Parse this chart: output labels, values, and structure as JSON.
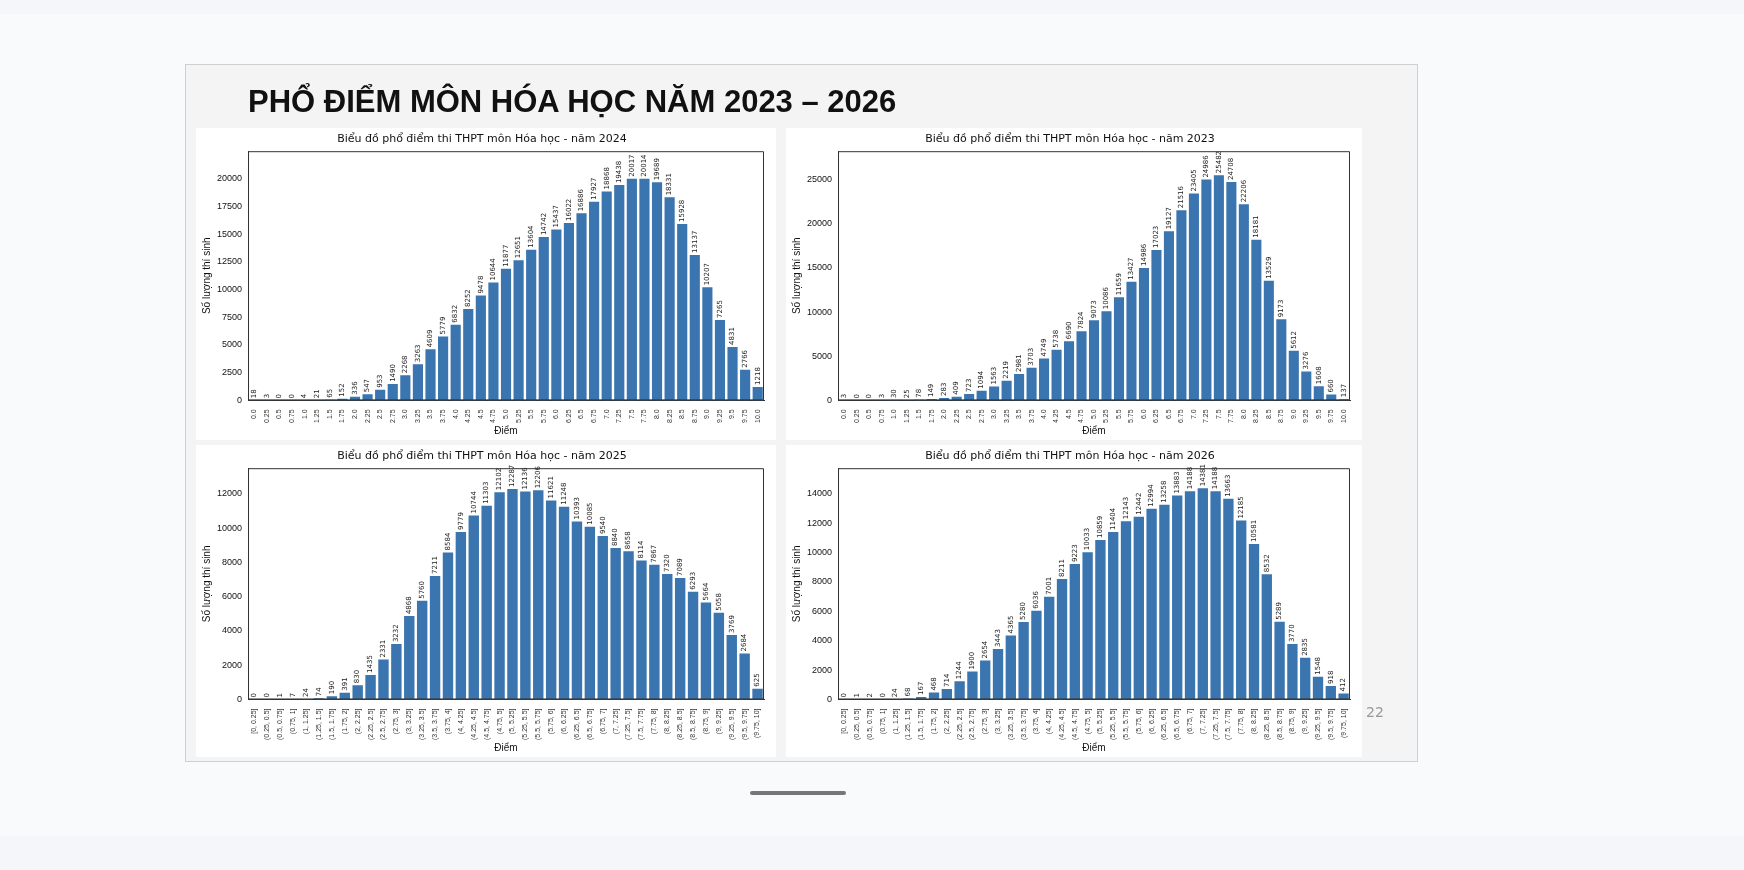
{
  "chart_data": [
    {
      "type": "bar",
      "title": "Biểu đồ phổ điểm thi THPT môn Hóa học - năm 2024",
      "xlabel": "Điểm",
      "ylabel": "Số lượng thí sinh",
      "annotations": [
        "PHỔ ĐIỂM MÔN HÓA HỌC NĂM 2023 – 2026",
        "22"
      ],
      "categories": [
        "0.0",
        "0.25",
        "0.5",
        "0.75",
        "1.0",
        "1.25",
        "1.5",
        "1.75",
        "2.0",
        "2.25",
        "2.5",
        "2.75",
        "3.0",
        "3.25",
        "3.5",
        "3.75",
        "4.0",
        "4.25",
        "4.5",
        "4.75",
        "5.0",
        "5.25",
        "5.5",
        "5.75",
        "6.0",
        "6.25",
        "6.5",
        "6.75",
        "7.0",
        "7.25",
        "7.5",
        "7.75",
        "8.0",
        "8.25",
        "8.5",
        "8.75",
        "9.0",
        "9.25",
        "9.5",
        "9.75",
        "10.0"
      ],
      "values": [
        18,
        3,
        0,
        0,
        4,
        21,
        65,
        152,
        336,
        547,
        953,
        1490,
        2268,
        3263,
        4609,
        5779,
        6832,
        8252,
        9478,
        10644,
        11877,
        12651,
        13604,
        14742,
        15437,
        16022,
        16886,
        17927,
        18868,
        19438,
        20017,
        20014,
        19689,
        18331,
        15928,
        13137,
        10207,
        7265,
        4831,
        2766,
        1218
      ],
      "color": "#3b75af",
      "ylim": [
        0,
        22500
      ],
      "yticks": [
        0,
        2500,
        5000,
        7500,
        10000,
        12500,
        15000,
        17500,
        20000
      ],
      "data_labels": true,
      "grid": false,
      "legend": false
    },
    {
      "type": "bar",
      "title": "Biểu đồ phổ điểm thi THPT môn Hóa học - năm 2023",
      "xlabel": "Điểm",
      "ylabel": "Số lượng thí sinh",
      "categories": [
        "0.0",
        "0.25",
        "0.5",
        "0.75",
        "1.0",
        "1.25",
        "1.5",
        "1.75",
        "2.0",
        "2.25",
        "2.5",
        "2.75",
        "3.0",
        "3.25",
        "3.5",
        "3.75",
        "4.0",
        "4.25",
        "4.5",
        "4.75",
        "5.0",
        "5.25",
        "5.5",
        "5.75",
        "6.0",
        "6.25",
        "6.5",
        "6.75",
        "7.0",
        "7.25",
        "7.5",
        "7.75",
        "8.0",
        "8.25",
        "8.5",
        "8.75",
        "9.0",
        "9.25",
        "9.5",
        "9.75",
        "10.0"
      ],
      "values": [
        3,
        0,
        0,
        3,
        30,
        25,
        78,
        149,
        283,
        409,
        723,
        1094,
        1563,
        2219,
        2981,
        3703,
        4749,
        5738,
        6690,
        7824,
        9073,
        10086,
        11659,
        13427,
        14986,
        17023,
        19127,
        21516,
        23405,
        24986,
        25482,
        24708,
        22206,
        18181,
        13529,
        9173,
        5612,
        3276,
        1608,
        660,
        137
      ],
      "color": "#3b75af",
      "ylim": [
        0,
        28200
      ],
      "yticks": [
        0,
        5000,
        10000,
        15000,
        20000,
        25000
      ],
      "data_labels": true,
      "grid": false,
      "legend": false
    },
    {
      "type": "bar",
      "title": "Biểu đồ phổ điểm thi THPT môn Hóa học - năm 2025",
      "xlabel": "Điểm",
      "ylabel": "Số lượng thí sinh",
      "categories": [
        "[0, 0.25]",
        "(0.25, 0.5]",
        "(0.5, 0.75]",
        "(0.75, 1]",
        "(1, 1.25]",
        "(1.25, 1.5]",
        "(1.5, 1.75]",
        "(1.75, 2]",
        "(2, 2.25]",
        "(2.25, 2.5]",
        "(2.5, 2.75]",
        "(2.75, 3]",
        "(3, 3.25]",
        "(3.25, 3.5]",
        "(3.5, 3.75]",
        "(3.75, 4]",
        "(4, 4.25]",
        "(4.25, 4.5]",
        "(4.5, 4.75]",
        "(4.75, 5]",
        "(5, 5.25]",
        "(5.25, 5.5]",
        "(5.5, 5.75]",
        "(5.75, 6]",
        "(6, 6.25]",
        "(6.25, 6.5]",
        "(6.5, 6.75]",
        "(6.75, 7]",
        "(7, 7.25]",
        "(7.25, 7.5]",
        "(7.5, 7.75]",
        "(7.75, 8]",
        "(8, 8.25]",
        "(8.25, 8.5]",
        "(8.5, 8.75]",
        "(8.75, 9]",
        "(9, 9.25]",
        "(9.25, 9.5]",
        "(9.5, 9.75]",
        "(9.75, 10]"
      ],
      "values": [
        0,
        0,
        1,
        7,
        24,
        74,
        190,
        391,
        830,
        1435,
        2331,
        3232,
        4868,
        5760,
        7211,
        8584,
        9779,
        10744,
        11303,
        12102,
        12287,
        12136,
        12206,
        11621,
        11248,
        10393,
        10085,
        9540,
        8840,
        8658,
        8114,
        7867,
        7320,
        7089,
        6293,
        5664,
        5058,
        3769,
        2684,
        625
      ],
      "color": "#3b75af",
      "ylim": [
        0,
        13500
      ],
      "yticks": [
        0,
        2000,
        4000,
        6000,
        8000,
        10000,
        12000
      ],
      "data_labels": true,
      "grid": false,
      "legend": false
    },
    {
      "type": "bar",
      "title": "Biểu đồ phổ điểm thi THPT môn Hóa học - năm 2026",
      "xlabel": "Điểm",
      "ylabel": "Số lượng thí sinh",
      "categories": [
        "[0, 0.25]",
        "(0.25, 0.5]",
        "(0.5, 0.75]",
        "(0.75, 1]",
        "(1, 1.25]",
        "(1.25, 1.5]",
        "(1.5, 1.75]",
        "(1.75, 2]",
        "(2, 2.25]",
        "(2.25, 2.5]",
        "(2.5, 2.75]",
        "(2.75, 3]",
        "(3, 3.25]",
        "(3.25, 3.5]",
        "(3.5, 3.75]",
        "(3.75, 4]",
        "(4, 4.25]",
        "(4.25, 4.5]",
        "(4.5, 4.75]",
        "(4.75, 5]",
        "(5, 5.25]",
        "(5.25, 5.5]",
        "(5.5, 5.75]",
        "(5.75, 6]",
        "(6, 6.25]",
        "(6.25, 6.5]",
        "(6.5, 6.75]",
        "(6.75, 7]",
        "(7, 7.25]",
        "(7.25, 7.5]",
        "(7.5, 7.75]",
        "(7.75, 8]",
        "(8, 8.25]",
        "(8.25, 8.5]",
        "(8.5, 8.75]",
        "(8.75, 9]",
        "(9, 9.25]",
        "(9.25, 9.5]",
        "(9.5, 9.75]",
        "(9.75, 10]"
      ],
      "values": [
        0,
        1,
        2,
        0,
        24,
        68,
        167,
        468,
        714,
        1244,
        1900,
        2654,
        3443,
        4365,
        5280,
        6036,
        7001,
        8211,
        9223,
        10033,
        10859,
        11404,
        12143,
        12442,
        12994,
        13258,
        13883,
        14188,
        14381,
        14188,
        13663,
        12185,
        10581,
        8532,
        5289,
        3770,
        2835,
        1548,
        918,
        412
      ],
      "color": "#3b75af",
      "ylim": [
        0,
        15750
      ],
      "yticks": [
        0,
        2000,
        4000,
        6000,
        8000,
        10000,
        12000,
        14000
      ],
      "data_labels": true,
      "grid": false,
      "legend": false
    }
  ]
}
